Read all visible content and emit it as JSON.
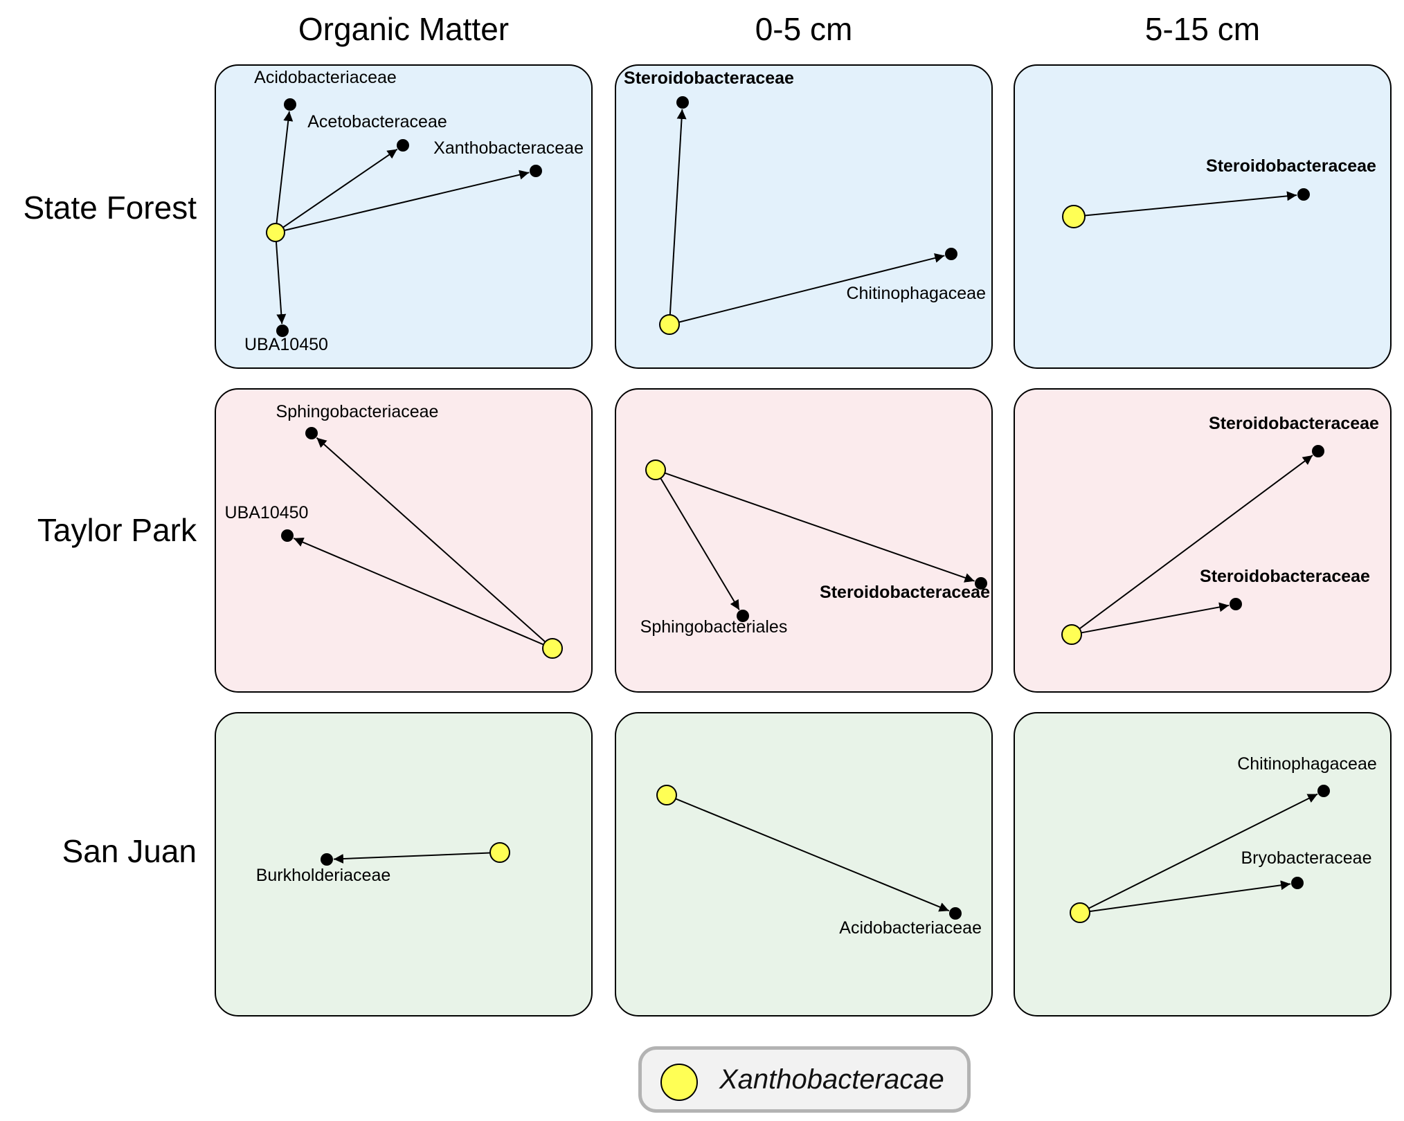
{
  "columns": [
    "Organic Matter",
    "0-5 cm",
    "5-15 cm"
  ],
  "rows": [
    "State Forest",
    "Taylor Park",
    "San Juan"
  ],
  "colors": {
    "state_forest_bg": "#e3f1fb",
    "taylor_park_bg": "#fbebed",
    "san_juan_bg": "#e8f3e8",
    "hub_fill": "#ffff55",
    "node_fill": "#000000"
  },
  "hub_label": "Xanthobacteracae",
  "panels": [
    {
      "row": 0,
      "col": 0,
      "targets": [
        "Acidobacteriaceae",
        "Acetobacteraceae",
        "Xanthobacteraceae",
        "UBA10450"
      ],
      "bold": [
        false,
        false,
        false,
        false
      ]
    },
    {
      "row": 0,
      "col": 1,
      "targets": [
        "Steroidobacteraceae",
        "Chitinophagaceae"
      ],
      "bold": [
        true,
        false
      ]
    },
    {
      "row": 0,
      "col": 2,
      "targets": [
        "Steroidobacteraceae"
      ],
      "bold": [
        true
      ]
    },
    {
      "row": 1,
      "col": 0,
      "targets": [
        "Sphingobacteriaceae",
        "UBA10450"
      ],
      "bold": [
        false,
        false
      ]
    },
    {
      "row": 1,
      "col": 1,
      "targets": [
        "Steroidobacteraceae",
        "Sphingobacteriales"
      ],
      "bold": [
        true,
        false
      ]
    },
    {
      "row": 1,
      "col": 2,
      "targets": [
        "Steroidobacteraceae",
        "Steroidobacteraceae"
      ],
      "bold": [
        true,
        true
      ]
    },
    {
      "row": 2,
      "col": 0,
      "targets": [
        "Burkholderiaceae"
      ],
      "bold": [
        false
      ]
    },
    {
      "row": 2,
      "col": 1,
      "targets": [
        "Acidobacteriaceae"
      ],
      "bold": [
        false
      ]
    },
    {
      "row": 2,
      "col": 2,
      "targets": [
        "Chitinophagaceae",
        "Bryobacteraceae"
      ],
      "bold": [
        false,
        false
      ]
    }
  ]
}
